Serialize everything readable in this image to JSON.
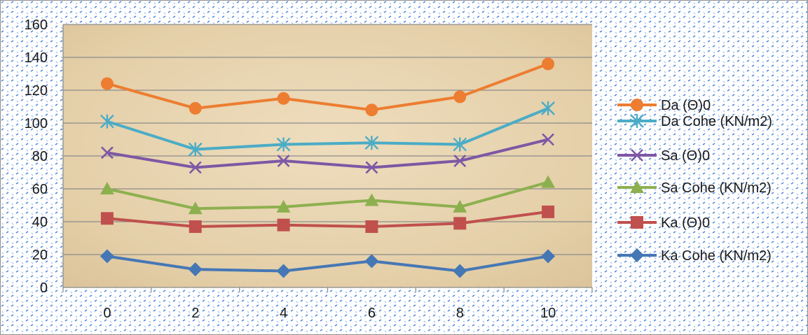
{
  "chart_data": {
    "type": "line",
    "title": "",
    "xlabel": "",
    "ylabel": "",
    "x": [
      0,
      2,
      4,
      6,
      8,
      10
    ],
    "xticks": [
      "0",
      "2",
      "4",
      "6",
      "8",
      "10"
    ],
    "ylim": [
      0,
      160
    ],
    "yticks": [
      "0",
      "20",
      "40",
      "60",
      "80",
      "100",
      "120",
      "140",
      "160"
    ],
    "grid": "horizontal",
    "legend_position": "right",
    "series": [
      {
        "name": "Da (Θ)0",
        "values": [
          124,
          109,
          115,
          108,
          116,
          136
        ],
        "color": "#ED7D31",
        "marker": "circle"
      },
      {
        "name": "Da Cohe (KN/m2)",
        "values": [
          101,
          84,
          87,
          88,
          87,
          109
        ],
        "color": "#4BACC6",
        "marker": "star"
      },
      {
        "name": "Sa  (Θ)0",
        "values": [
          82,
          73,
          77,
          73,
          77,
          90
        ],
        "color": "#7E57A5",
        "marker": "x"
      },
      {
        "name": "Sa Cohe (KN/m2)",
        "values": [
          60,
          48,
          49,
          53,
          49,
          64
        ],
        "color": "#8DB04F",
        "marker": "triangle"
      },
      {
        "name": "Ka  (Θ)0",
        "values": [
          42,
          37,
          38,
          37,
          39,
          46
        ],
        "color": "#C0504D",
        "marker": "square"
      },
      {
        "name": "Ka Cohe (KN/m2)",
        "values": [
          19,
          11,
          10,
          16,
          10,
          19
        ],
        "color": "#4677B5",
        "marker": "diamond"
      }
    ]
  }
}
